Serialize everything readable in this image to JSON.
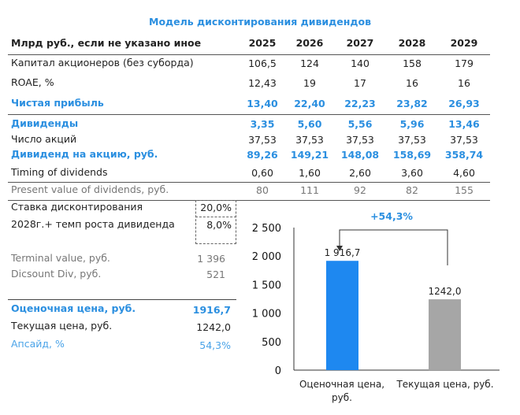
{
  "title": "Модель дисконтирования дивидендов",
  "table": {
    "header_label": "Млрд руб., если не указано иное",
    "years": [
      "2025",
      "2026",
      "2027",
      "2028",
      "2029"
    ],
    "rows": [
      {
        "label": "Капитал акционеров (без суборда)",
        "values": [
          "106,5",
          "124",
          "140",
          "158",
          "179"
        ],
        "style": "normal"
      },
      {
        "label": "ROAE, %",
        "values": [
          "12,43",
          "19",
          "17",
          "16",
          "16"
        ],
        "style": "normal"
      },
      {
        "label": "Чистая прибыль",
        "values": [
          "13,40",
          "22,40",
          "22,23",
          "23,82",
          "26,93"
        ],
        "style": "blue"
      },
      {
        "label": "Дивиденды",
        "values": [
          "3,35",
          "5,60",
          "5,56",
          "5,96",
          "13,46"
        ],
        "style": "blue"
      },
      {
        "label": "Число акций",
        "values": [
          "37,53",
          "37,53",
          "37,53",
          "37,53",
          "37,53"
        ],
        "style": "normal"
      },
      {
        "label": "Дивиденд на акцию, руб.",
        "values": [
          "89,26",
          "149,21",
          "148,08",
          "158,69",
          "358,74"
        ],
        "style": "blue"
      },
      {
        "label": "Timing of dividends",
        "values": [
          "0,60",
          "1,60",
          "2,60",
          "3,60",
          "4,60"
        ],
        "style": "normal"
      },
      {
        "label": "Present value of dividends, руб.",
        "values": [
          "80",
          "111",
          "92",
          "82",
          "155"
        ],
        "style": "grey"
      }
    ]
  },
  "assumptions": [
    {
      "label": "Ставка дисконтирования",
      "value": "20,0%"
    },
    {
      "label": "2028г.+ темп роста дивиденда",
      "value": "8,0%"
    }
  ],
  "valuation": [
    {
      "label": "Terminal value, руб.",
      "value": "1 396",
      "style": "grey"
    },
    {
      "label": "Dicsount Div, руб.",
      "value": "521",
      "style": "grey"
    }
  ],
  "summary": [
    {
      "label": "Оценочная цена, руб.",
      "value": "1916,7",
      "style": "blue"
    },
    {
      "label": "Текущая цена, руб.",
      "value": "1242,0",
      "style": "normal"
    },
    {
      "label": "Апсайд, %",
      "value": "54,3%",
      "style": "light"
    }
  ],
  "chart_data": {
    "type": "bar",
    "categories": [
      "Оценочная цена, руб.",
      "Текущая цена, руб."
    ],
    "values": [
      1916.7,
      1242.0
    ],
    "data_labels": [
      "1 916,7",
      "1242,0"
    ],
    "colors": [
      "#1e88f0",
      "#a6a6a6"
    ],
    "ylim": [
      0,
      2500
    ],
    "yticks": [
      0,
      500,
      1000,
      1500,
      2000,
      2500
    ],
    "ytick_labels": [
      "0",
      "500",
      "1 000",
      "1 500",
      "2 000",
      "2 500"
    ],
    "annotation": "+54,3%",
    "annotation_color": "#2b8fe0"
  }
}
